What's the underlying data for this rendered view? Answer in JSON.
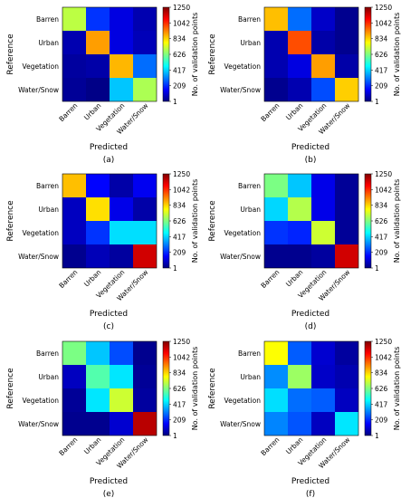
{
  "chart_data": [
    {
      "type": "heatmap",
      "caption": "(a)",
      "xlabel": "Predicted",
      "ylabel": "Reference",
      "x_categories": [
        "Barren",
        "Urban",
        "Vegetation",
        "Water/Snow"
      ],
      "y_categories": [
        "Barren",
        "Urban",
        "Vegetation",
        "Water/Snow"
      ],
      "values": [
        [
          700,
          220,
          120,
          60
        ],
        [
          60,
          900,
          120,
          70
        ],
        [
          40,
          50,
          870,
          290
        ],
        [
          30,
          10,
          400,
          680
        ]
      ],
      "colorbar": {
        "label": "No. of validation points",
        "ticks": [
          "1250",
          "1042",
          "834",
          "626",
          "417",
          "209",
          "1"
        ],
        "min": 1,
        "max": 1250
      }
    },
    {
      "type": "heatmap",
      "caption": "(b)",
      "xlabel": "Predicted",
      "ylabel": "Reference",
      "x_categories": [
        "Barren",
        "Urban",
        "Vegetation",
        "Water/Snow"
      ],
      "y_categories": [
        "Barren",
        "Urban",
        "Vegetation",
        "Water/Snow"
      ],
      "values": [
        [
          860,
          290,
          90,
          20
        ],
        [
          60,
          1000,
          50,
          20
        ],
        [
          60,
          120,
          900,
          50
        ],
        [
          20,
          60,
          250,
          840
        ]
      ],
      "colorbar": {
        "label": "No. of validation points",
        "ticks": [
          "1250",
          "1042",
          "834",
          "626",
          "417",
          "209",
          "1"
        ],
        "min": 1,
        "max": 1250
      }
    },
    {
      "type": "heatmap",
      "caption": "(c)",
      "xlabel": "Predicted",
      "ylabel": "Reference",
      "x_categories": [
        "Barren",
        "Urban",
        "Vegetation",
        "Water/Snow"
      ],
      "y_categories": [
        "Barren",
        "Urban",
        "Vegetation",
        "Water/Snow"
      ],
      "values": [
        [
          860,
          160,
          50,
          140
        ],
        [
          80,
          820,
          130,
          50
        ],
        [
          80,
          220,
          430,
          430
        ],
        [
          20,
          70,
          40,
          1150
        ]
      ],
      "colorbar": {
        "label": "No. of validation points",
        "ticks": [
          "1250",
          "1042",
          "834",
          "626",
          "417",
          "209",
          "1"
        ],
        "min": 1,
        "max": 1250
      }
    },
    {
      "type": "heatmap",
      "caption": "(d)",
      "xlabel": "Predicted",
      "ylabel": "Reference",
      "x_categories": [
        "Barren",
        "Urban",
        "Vegetation",
        "Water/Snow"
      ],
      "y_categories": [
        "Barren",
        "Urban",
        "Vegetation",
        "Water/Snow"
      ],
      "values": [
        [
          620,
          400,
          130,
          30
        ],
        [
          420,
          690,
          130,
          30
        ],
        [
          220,
          200,
          720,
          30
        ],
        [
          20,
          20,
          40,
          1150
        ]
      ],
      "colorbar": {
        "label": "No. of validation points",
        "ticks": [
          "1250",
          "1042",
          "834",
          "626",
          "417",
          "209",
          "1"
        ],
        "min": 1,
        "max": 1250
      }
    },
    {
      "type": "heatmap",
      "caption": "(e)",
      "xlabel": "Predicted",
      "ylabel": "Reference",
      "x_categories": [
        "Barren",
        "Urban",
        "Vegetation",
        "Water/Snow"
      ],
      "y_categories": [
        "Barren",
        "Urban",
        "Vegetation",
        "Water/Snow"
      ],
      "values": [
        [
          620,
          400,
          250,
          20
        ],
        [
          80,
          570,
          440,
          30
        ],
        [
          30,
          440,
          720,
          40
        ],
        [
          20,
          20,
          100,
          1180
        ]
      ],
      "colorbar": {
        "label": "No. of validation points",
        "ticks": [
          "1250",
          "1042",
          "834",
          "626",
          "417",
          "209",
          "1"
        ],
        "min": 1,
        "max": 1250
      }
    },
    {
      "type": "heatmap",
      "caption": "(f)",
      "xlabel": "Predicted",
      "ylabel": "Reference",
      "x_categories": [
        "Barren",
        "Urban",
        "Vegetation",
        "Water/Snow"
      ],
      "y_categories": [
        "Barren",
        "Urban",
        "Vegetation",
        "Water/Snow"
      ],
      "values": [
        [
          780,
          270,
          100,
          40
        ],
        [
          330,
          660,
          90,
          60
        ],
        [
          430,
          290,
          270,
          80
        ],
        [
          320,
          260,
          80,
          440
        ]
      ],
      "colorbar": {
        "label": "No. of validation points",
        "ticks": [
          "1250",
          "1042",
          "834",
          "626",
          "417",
          "209",
          "1"
        ],
        "min": 1,
        "max": 1250
      }
    }
  ]
}
